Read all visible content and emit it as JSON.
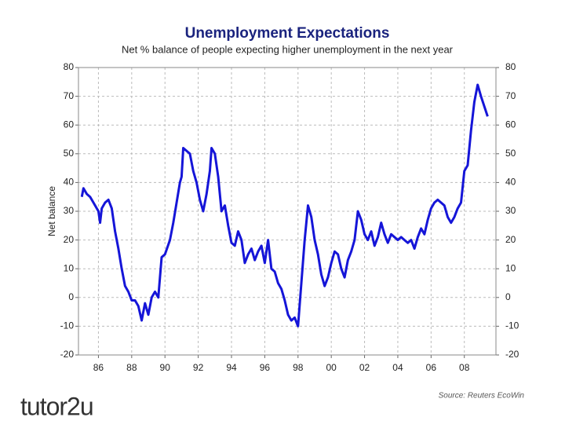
{
  "chart_data": {
    "type": "line",
    "title": "Unemployment Expectations",
    "subtitle": "Net % balance of people expecting higher unemployment in the next year",
    "y_label": "Net balance",
    "source": "Source: Reuters EcoWin",
    "logo": "tutor2u",
    "color": "#1515d8",
    "grid": true,
    "x": [
      1985.0,
      1985.1,
      1985.3,
      1985.5,
      1985.7,
      1986.0,
      1986.1,
      1986.2,
      1986.4,
      1986.6,
      1986.8,
      1987.0,
      1987.2,
      1987.4,
      1987.6,
      1987.8,
      1988.0,
      1988.2,
      1988.4,
      1988.6,
      1988.8,
      1989.0,
      1989.2,
      1989.4,
      1989.6,
      1989.8,
      1990.0,
      1990.3,
      1990.5,
      1990.7,
      1990.9,
      1991.0,
      1991.1,
      1991.3,
      1991.5,
      1991.7,
      1991.9,
      1992.1,
      1992.3,
      1992.5,
      1992.7,
      1992.8,
      1993.0,
      1993.2,
      1993.4,
      1993.6,
      1993.8,
      1994.0,
      1994.2,
      1994.4,
      1994.6,
      1994.8,
      1995.0,
      1995.2,
      1995.4,
      1995.6,
      1995.8,
      1996.0,
      1996.2,
      1996.4,
      1996.6,
      1996.8,
      1997.0,
      1997.2,
      1997.4,
      1997.6,
      1997.8,
      1998.0,
      1998.2,
      1998.4,
      1998.6,
      1998.8,
      1999.0,
      1999.2,
      1999.4,
      1999.6,
      1999.8,
      2000.0,
      2000.2,
      2000.4,
      2000.6,
      2000.8,
      2001.0,
      2001.2,
      2001.4,
      2001.6,
      2001.8,
      2002.0,
      2002.2,
      2002.4,
      2002.6,
      2002.8,
      2003.0,
      2003.2,
      2003.4,
      2003.6,
      2003.8,
      2004.0,
      2004.2,
      2004.4,
      2004.6,
      2004.8,
      2005.0,
      2005.2,
      2005.4,
      2005.6,
      2005.8,
      2006.0,
      2006.2,
      2006.4,
      2006.6,
      2006.8,
      2007.0,
      2007.2,
      2007.4,
      2007.6,
      2007.8,
      2008.0,
      2008.2,
      2008.4,
      2008.6,
      2008.8,
      2009.0,
      2009.4
    ],
    "values": [
      35,
      38,
      36,
      35,
      33,
      30,
      26,
      31,
      33,
      34,
      31,
      23,
      17,
      10,
      4,
      2,
      -1,
      -1,
      -3,
      -8,
      -2,
      -6,
      0,
      2,
      0,
      14,
      15,
      20,
      26,
      33,
      40,
      42,
      52,
      51,
      50,
      44,
      40,
      34,
      30,
      36,
      44,
      52,
      50,
      42,
      30,
      32,
      25,
      19,
      18,
      23,
      20,
      12,
      15,
      17,
      13,
      16,
      18,
      12,
      20,
      10,
      9,
      5,
      3,
      -1,
      -6,
      -8,
      -7,
      -10,
      5,
      20,
      32,
      28,
      20,
      15,
      8,
      4,
      7,
      12,
      16,
      15,
      10,
      7,
      13,
      16,
      20,
      30,
      27,
      22,
      20,
      23,
      18,
      21,
      26,
      22,
      19,
      22,
      21,
      20,
      21,
      20,
      19,
      20,
      17,
      21,
      24,
      22,
      27,
      31,
      33,
      34,
      33,
      32,
      28,
      26,
      28,
      31,
      33,
      44,
      46,
      58,
      68,
      74,
      70,
      63
    ],
    "xlim": [
      1984.8,
      2009.9
    ],
    "xticks": [
      {
        "value": 1986,
        "label": "86"
      },
      {
        "value": 1988,
        "label": "88"
      },
      {
        "value": 1990,
        "label": "90"
      },
      {
        "value": 1992,
        "label": "92"
      },
      {
        "value": 1994,
        "label": "94"
      },
      {
        "value": 1996,
        "label": "96"
      },
      {
        "value": 1998,
        "label": "98"
      },
      {
        "value": 2000,
        "label": "00"
      },
      {
        "value": 2002,
        "label": "02"
      },
      {
        "value": 2004,
        "label": "04"
      },
      {
        "value": 2006,
        "label": "06"
      },
      {
        "value": 2008,
        "label": "08"
      }
    ],
    "ylim": [
      -20,
      80
    ],
    "yticks": [
      -20,
      -10,
      0,
      10,
      20,
      30,
      40,
      50,
      60,
      70,
      80
    ],
    "y2lim": [
      -20,
      80
    ],
    "y2ticks": [
      -20,
      -10,
      0,
      10,
      20,
      30,
      40,
      50,
      60,
      70,
      80
    ]
  }
}
